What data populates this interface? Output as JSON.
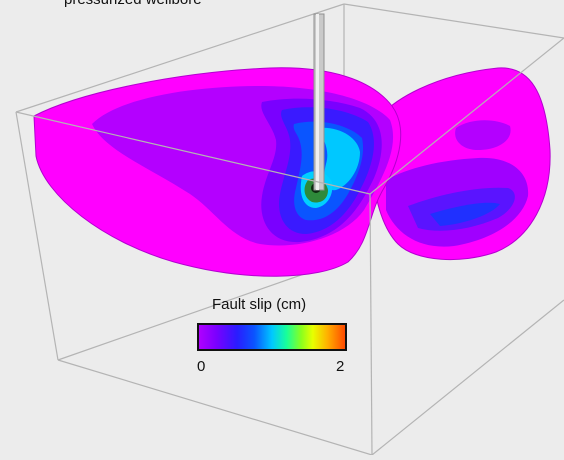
{
  "top_label": "pressurized wellbore",
  "legend": {
    "title": "Fault slip (cm)",
    "min_label": "0",
    "max_label": "2",
    "colormap": [
      "#b000ff",
      "#7a00ff",
      "#2a1cff",
      "#0a55ff",
      "#00c8ff",
      "#18ff9a",
      "#8aff1e",
      "#e8ff00",
      "#ffb000",
      "#ff4a00"
    ]
  },
  "colors": {
    "background": "#ececec",
    "fault_base": "#ff00ff",
    "box_edges": "#b4b4b4",
    "wellbore": "#c9c9c9"
  }
}
